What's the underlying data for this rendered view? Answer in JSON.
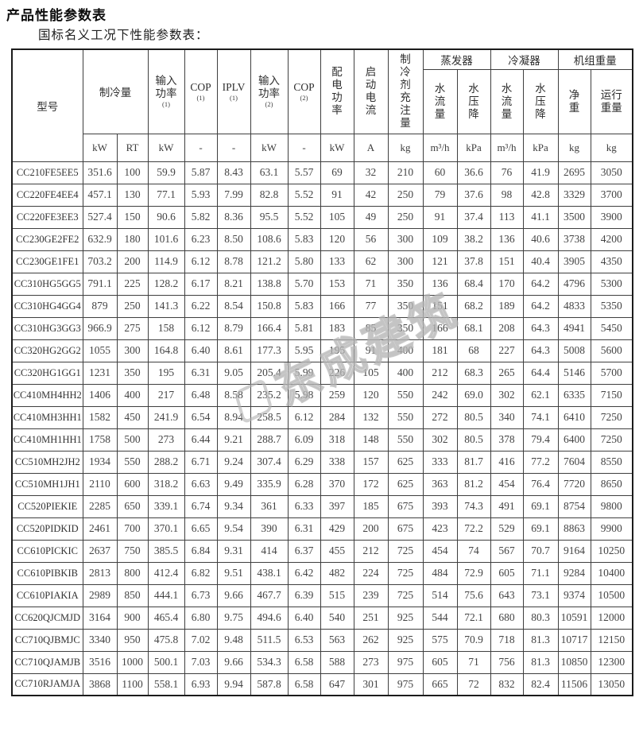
{
  "page": {
    "title": "产品性能参数表",
    "subtitle": "国标名义工况下性能参数表："
  },
  "watermark": {
    "text": "东成建筑"
  },
  "table": {
    "header": {
      "model": "型号",
      "cooling": "制冷量",
      "input_power_1": {
        "label": "输入\n功率",
        "sup": "(1)"
      },
      "cop1": {
        "label": "COP",
        "sup": "(1)"
      },
      "iplv": {
        "label": "IPLV",
        "sup": "(1)"
      },
      "input_power_2": {
        "label": "输入\n功率",
        "sup": "(2)"
      },
      "cop2": {
        "label": "COP",
        "sup": "(2)"
      },
      "power_supply": "配\n电\n功\n率",
      "start_current": "启\n动\n电\n流",
      "refrigerant_charge": "制\n冷\n剂\n充\n注\n量",
      "evaporator": "蒸发器",
      "condenser": "冷凝器",
      "unit_weight": "机组重量",
      "water_flow": "水\n流\n量",
      "water_pressure_drop": "水\n压\n降",
      "net_weight": "净\n重",
      "running_weight": "运行\n重量"
    },
    "units": [
      "kW",
      "RT",
      "kW",
      "-",
      "-",
      "kW",
      "-",
      "kW",
      "A",
      "kg",
      "m³/h",
      "kPa",
      "m³/h",
      "kPa",
      "kg",
      "kg"
    ],
    "rows": [
      [
        "CC210FE5EE5",
        "351.6",
        "100",
        "59.9",
        "5.87",
        "8.43",
        "63.1",
        "5.57",
        "69",
        "32",
        "210",
        "60",
        "36.6",
        "76",
        "41.9",
        "2695",
        "3050"
      ],
      [
        "CC220FE4EE4",
        "457.1",
        "130",
        "77.1",
        "5.93",
        "7.99",
        "82.8",
        "5.52",
        "91",
        "42",
        "250",
        "79",
        "37.6",
        "98",
        "42.8",
        "3329",
        "3700"
      ],
      [
        "CC220FE3EE3",
        "527.4",
        "150",
        "90.6",
        "5.82",
        "8.36",
        "95.5",
        "5.52",
        "105",
        "49",
        "250",
        "91",
        "37.4",
        "113",
        "41.1",
        "3500",
        "3900"
      ],
      [
        "CC230GE2FE2",
        "632.9",
        "180",
        "101.6",
        "6.23",
        "8.50",
        "108.6",
        "5.83",
        "120",
        "56",
        "300",
        "109",
        "38.2",
        "136",
        "40.6",
        "3738",
        "4200"
      ],
      [
        "CC230GE1FE1",
        "703.2",
        "200",
        "114.9",
        "6.12",
        "8.78",
        "121.2",
        "5.80",
        "133",
        "62",
        "300",
        "121",
        "37.8",
        "151",
        "40.4",
        "3905",
        "4350"
      ],
      [
        "CC310HG5GG5",
        "791.1",
        "225",
        "128.2",
        "6.17",
        "8.21",
        "138.8",
        "5.70",
        "153",
        "71",
        "350",
        "136",
        "68.4",
        "170",
        "64.2",
        "4796",
        "5300"
      ],
      [
        "CC310HG4GG4",
        "879",
        "250",
        "141.3",
        "6.22",
        "8.54",
        "150.8",
        "5.83",
        "166",
        "77",
        "350",
        "151",
        "68.2",
        "189",
        "64.2",
        "4833",
        "5350"
      ],
      [
        "CC310HG3GG3",
        "966.9",
        "275",
        "158",
        "6.12",
        "8.79",
        "166.4",
        "5.81",
        "183",
        "85",
        "350",
        "166",
        "68.1",
        "208",
        "64.3",
        "4941",
        "5450"
      ],
      [
        "CC320HG2GG2",
        "1055",
        "300",
        "164.8",
        "6.40",
        "8.61",
        "177.3",
        "5.95",
        "195",
        "91",
        "400",
        "181",
        "68",
        "227",
        "64.3",
        "5008",
        "5600"
      ],
      [
        "CC320HG1GG1",
        "1231",
        "350",
        "195",
        "6.31",
        "9.05",
        "205.4",
        "5.99",
        "226",
        "105",
        "400",
        "212",
        "68.3",
        "265",
        "64.4",
        "5146",
        "5700"
      ],
      [
        "CC410MH4HH2",
        "1406",
        "400",
        "217",
        "6.48",
        "8.58",
        "235.2",
        "5.98",
        "259",
        "120",
        "550",
        "242",
        "69.0",
        "302",
        "62.1",
        "6335",
        "7150"
      ],
      [
        "CC410MH3HH1",
        "1582",
        "450",
        "241.9",
        "6.54",
        "8.94",
        "258.5",
        "6.12",
        "284",
        "132",
        "550",
        "272",
        "80.5",
        "340",
        "74.1",
        "6410",
        "7250"
      ],
      [
        "CC410MH1HH1",
        "1758",
        "500",
        "273",
        "6.44",
        "9.21",
        "288.7",
        "6.09",
        "318",
        "148",
        "550",
        "302",
        "80.5",
        "378",
        "79.4",
        "6400",
        "7250"
      ],
      [
        "CC510MH2JH2",
        "1934",
        "550",
        "288.2",
        "6.71",
        "9.24",
        "307.4",
        "6.29",
        "338",
        "157",
        "625",
        "333",
        "81.7",
        "416",
        "77.2",
        "7604",
        "8550"
      ],
      [
        "CC510MH1JH1",
        "2110",
        "600",
        "318.2",
        "6.63",
        "9.49",
        "335.9",
        "6.28",
        "370",
        "172",
        "625",
        "363",
        "81.2",
        "454",
        "76.4",
        "7720",
        "8650"
      ],
      [
        "CC520PIEKIE",
        "2285",
        "650",
        "339.1",
        "6.74",
        "9.34",
        "361",
        "6.33",
        "397",
        "185",
        "675",
        "393",
        "74.3",
        "491",
        "69.1",
        "8754",
        "9800"
      ],
      [
        "CC520PIDKID",
        "2461",
        "700",
        "370.1",
        "6.65",
        "9.54",
        "390",
        "6.31",
        "429",
        "200",
        "675",
        "423",
        "72.2",
        "529",
        "69.1",
        "8863",
        "9900"
      ],
      [
        "CC610PICKIC",
        "2637",
        "750",
        "385.5",
        "6.84",
        "9.31",
        "414",
        "6.37",
        "455",
        "212",
        "725",
        "454",
        "74",
        "567",
        "70.7",
        "9164",
        "10250"
      ],
      [
        "CC610PIBKIB",
        "2813",
        "800",
        "412.4",
        "6.82",
        "9.51",
        "438.1",
        "6.42",
        "482",
        "224",
        "725",
        "484",
        "72.9",
        "605",
        "71.1",
        "9284",
        "10400"
      ],
      [
        "CC610PIAKIA",
        "2989",
        "850",
        "444.1",
        "6.73",
        "9.66",
        "467.7",
        "6.39",
        "515",
        "239",
        "725",
        "514",
        "75.6",
        "643",
        "73.1",
        "9374",
        "10500"
      ],
      [
        "CC620QJCMJD",
        "3164",
        "900",
        "465.4",
        "6.80",
        "9.75",
        "494.6",
        "6.40",
        "540",
        "251",
        "925",
        "544",
        "72.1",
        "680",
        "80.3",
        "10591",
        "12000"
      ],
      [
        "CC710QJBMJC",
        "3340",
        "950",
        "475.8",
        "7.02",
        "9.48",
        "511.5",
        "6.53",
        "563",
        "262",
        "925",
        "575",
        "70.9",
        "718",
        "81.3",
        "10717",
        "12150"
      ],
      [
        "CC710QJAMJB",
        "3516",
        "1000",
        "500.1",
        "7.03",
        "9.66",
        "534.3",
        "6.58",
        "588",
        "273",
        "975",
        "605",
        "71",
        "756",
        "81.3",
        "10850",
        "12300"
      ],
      [
        "CC710RJAMJA",
        "3868",
        "1100",
        "558.1",
        "6.93",
        "9.94",
        "587.8",
        "6.58",
        "647",
        "301",
        "975",
        "665",
        "72",
        "832",
        "82.4",
        "11506",
        "13050"
      ]
    ]
  }
}
